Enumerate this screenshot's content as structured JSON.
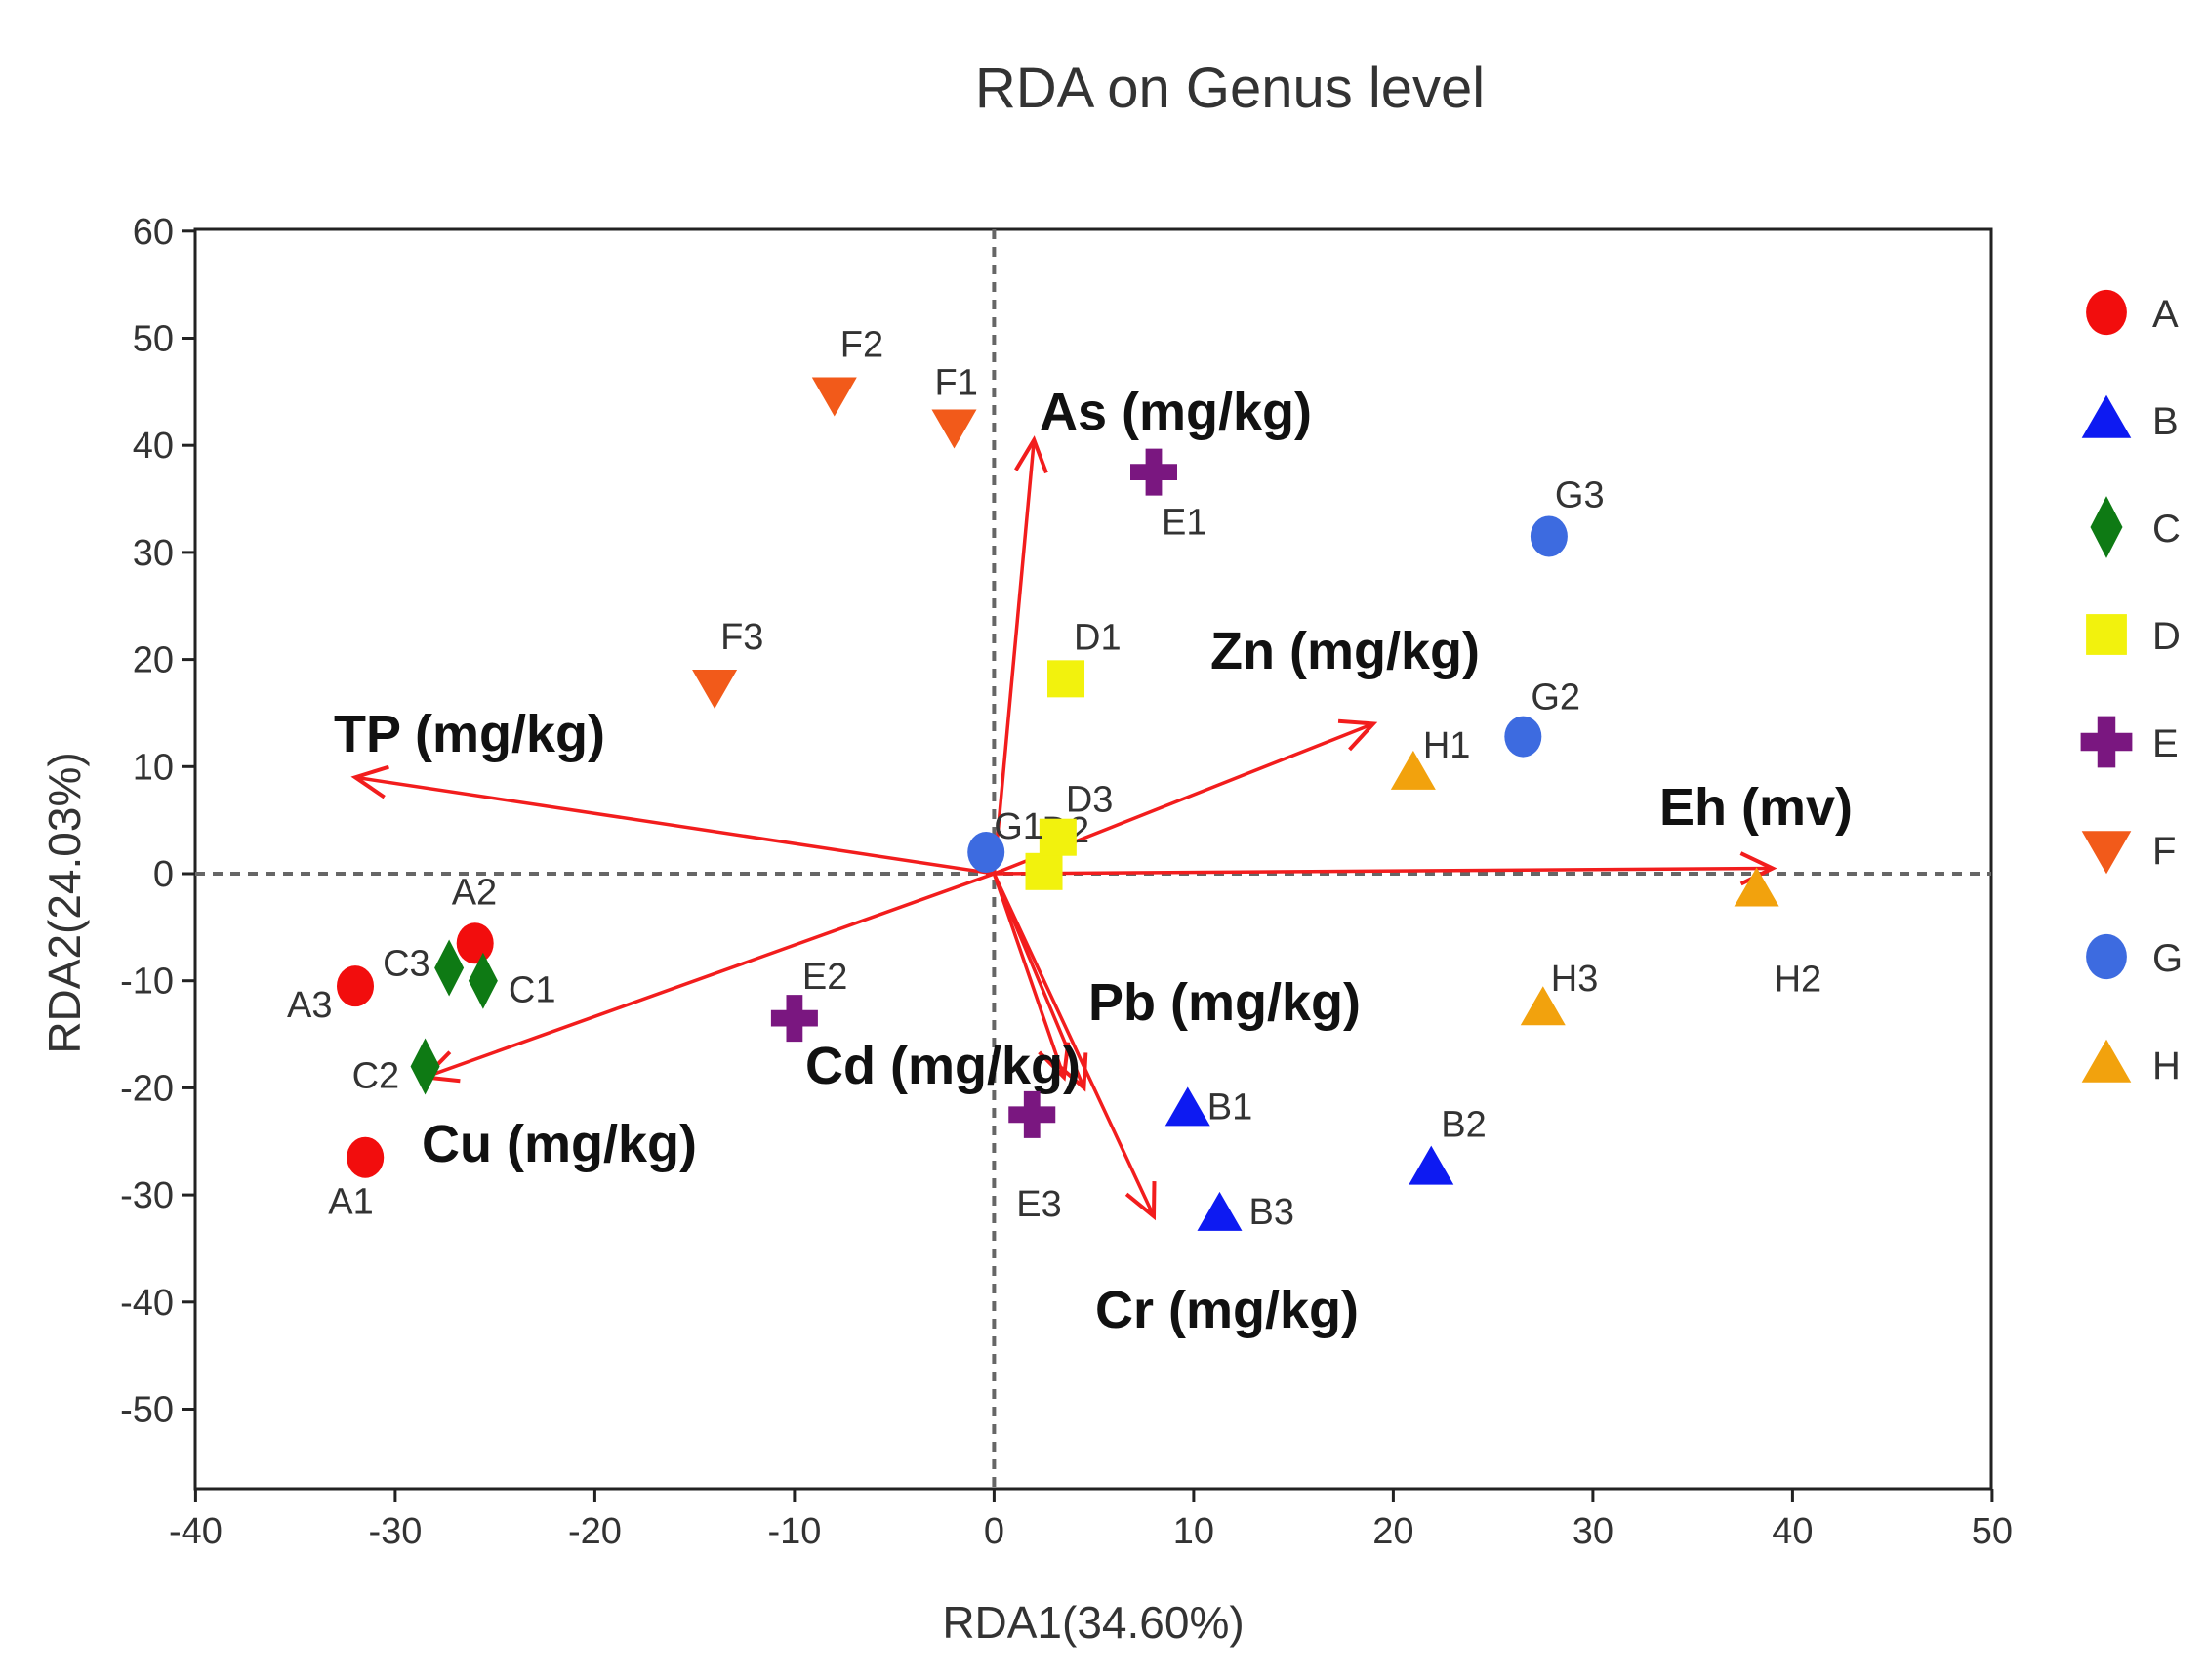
{
  "chart_data": {
    "type": "scatter",
    "title": "RDA on Genus level",
    "xlabel": "RDA1(34.60%)",
    "ylabel": "RDA2(24.03%)",
    "xlim": [
      -40,
      50
    ],
    "ylim": [
      -57,
      60
    ],
    "xticks": [
      -40,
      -30,
      -20,
      -10,
      0,
      10,
      20,
      30,
      40,
      50
    ],
    "yticks": [
      -50,
      -40,
      -30,
      -20,
      -10,
      0,
      10,
      20,
      30,
      40,
      50,
      60
    ],
    "groups": [
      {
        "name": "A",
        "shape": "circle",
        "color": "#f20d0d",
        "points": [
          {
            "label": "A1",
            "x": -31.5,
            "y": -26.5
          },
          {
            "label": "A2",
            "x": -26.0,
            "y": -6.5
          },
          {
            "label": "A3",
            "x": -32.0,
            "y": -10.5
          }
        ]
      },
      {
        "name": "B",
        "shape": "triangle",
        "color": "#0d1af2",
        "points": [
          {
            "label": "B1",
            "x": 9.7,
            "y": -22.0
          },
          {
            "label": "B2",
            "x": 21.9,
            "y": -27.5
          },
          {
            "label": "B3",
            "x": 11.3,
            "y": -31.8
          }
        ]
      },
      {
        "name": "C",
        "shape": "diamond",
        "color": "#0e7a14",
        "points": [
          {
            "label": "C1",
            "x": -25.6,
            "y": -10.0
          },
          {
            "label": "C2",
            "x": -28.5,
            "y": -18.0
          },
          {
            "label": "C3",
            "x": -27.3,
            "y": -8.8
          }
        ]
      },
      {
        "name": "D",
        "shape": "square",
        "color": "#f2f20d",
        "points": [
          {
            "label": "D1",
            "x": 3.6,
            "y": 18.2
          },
          {
            "label": "D2",
            "x": 2.5,
            "y": 0.2
          },
          {
            "label": "D3",
            "x": 3.2,
            "y": 3.4
          }
        ]
      },
      {
        "name": "E",
        "shape": "cross",
        "color": "#7a1780",
        "points": [
          {
            "label": "E1",
            "x": 8.0,
            "y": 37.5
          },
          {
            "label": "E2",
            "x": -10.0,
            "y": -13.5
          },
          {
            "label": "E3",
            "x": 1.9,
            "y": -22.5
          }
        ]
      },
      {
        "name": "F",
        "shape": "triangle-down",
        "color": "#f25a1a",
        "points": [
          {
            "label": "F1",
            "x": -2.0,
            "y": 41.8
          },
          {
            "label": "F2",
            "x": -8.0,
            "y": 44.8
          },
          {
            "label": "F3",
            "x": -14.0,
            "y": 17.5
          }
        ]
      },
      {
        "name": "G",
        "shape": "circle",
        "color": "#3d6be0",
        "points": [
          {
            "label": "G1",
            "x": -0.4,
            "y": 2.0
          },
          {
            "label": "G2",
            "x": 26.5,
            "y": 12.8
          },
          {
            "label": "G3",
            "x": 27.8,
            "y": 31.5
          }
        ]
      },
      {
        "name": "H",
        "shape": "triangle",
        "color": "#f2a20d",
        "points": [
          {
            "label": "H1",
            "x": 21.0,
            "y": 9.4
          },
          {
            "label": "H2",
            "x": 38.2,
            "y": -1.5
          },
          {
            "label": "H3",
            "x": 27.5,
            "y": -12.6
          }
        ]
      }
    ],
    "env_arrows": [
      {
        "label": "As (mg/kg)",
        "x": 2.0,
        "y": 40.5
      },
      {
        "label": "TP (mg/kg)",
        "x": -32.0,
        "y": 9.0
      },
      {
        "label": "Zn (mg/kg)",
        "x": 19.0,
        "y": 14.0
      },
      {
        "label": "Eh (mv)",
        "x": 39.0,
        "y": 0.5
      },
      {
        "label": "Pb (mg/kg)",
        "x": 4.5,
        "y": -20.0
      },
      {
        "label": "Cd (mg/kg)",
        "x": 3.5,
        "y": -19.0
      },
      {
        "label": "Cu (mg/kg)",
        "x": -28.5,
        "y": -19.0
      },
      {
        "label": "Cr (mg/kg)",
        "x": 8.0,
        "y": -32.0
      }
    ],
    "reference_lines": {
      "x": 0,
      "y": 0,
      "style": "dashed"
    },
    "legend_position": "right"
  }
}
